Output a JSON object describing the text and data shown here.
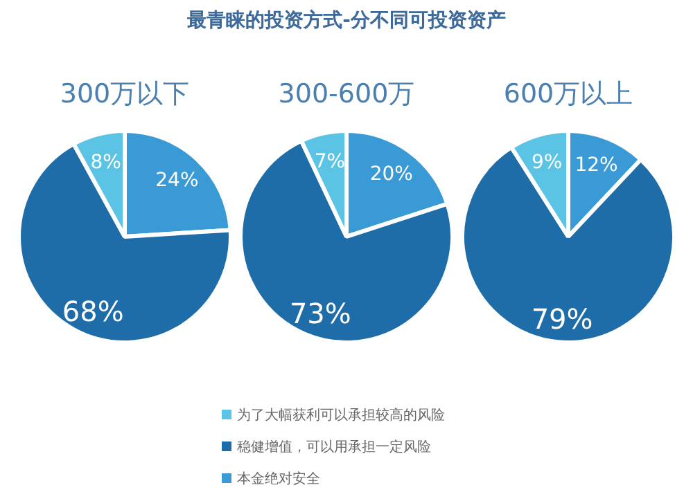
{
  "chart_data": [
    {
      "type": "other",
      "title": "最青睐的投资方式-分不同可投资资产"
    },
    {
      "type": "pie",
      "title": "300万以下",
      "categories": [
        "本金绝对安全",
        "稳健增值，可以用承担一定风险",
        "为了大幅获利可以承担较高的风险"
      ],
      "values": [
        24,
        68,
        8
      ],
      "colors": [
        "#3a9ad6",
        "#1f6da8",
        "#5bc3e3"
      ],
      "value_labels": [
        "24%",
        "68%",
        "8%"
      ],
      "legend": "bottom"
    },
    {
      "type": "pie",
      "title": "300-600万",
      "categories": [
        null,
        null,
        null
      ],
      "values": [
        20,
        73,
        7
      ],
      "colors": [
        "#3a9ad6",
        "#1f6da8",
        "#5bc3e3"
      ],
      "value_labels": [
        "20%",
        "73%",
        "7%"
      ]
    },
    {
      "type": "pie",
      "title": "600万以上",
      "categories": [
        null,
        null,
        null
      ],
      "values": [
        12,
        79,
        9
      ],
      "colors": [
        "#3a9ad6",
        "#1f6da8",
        "#5bc3e3"
      ],
      "value_labels": [
        "12%",
        "79%",
        "9%"
      ]
    }
  ]
}
